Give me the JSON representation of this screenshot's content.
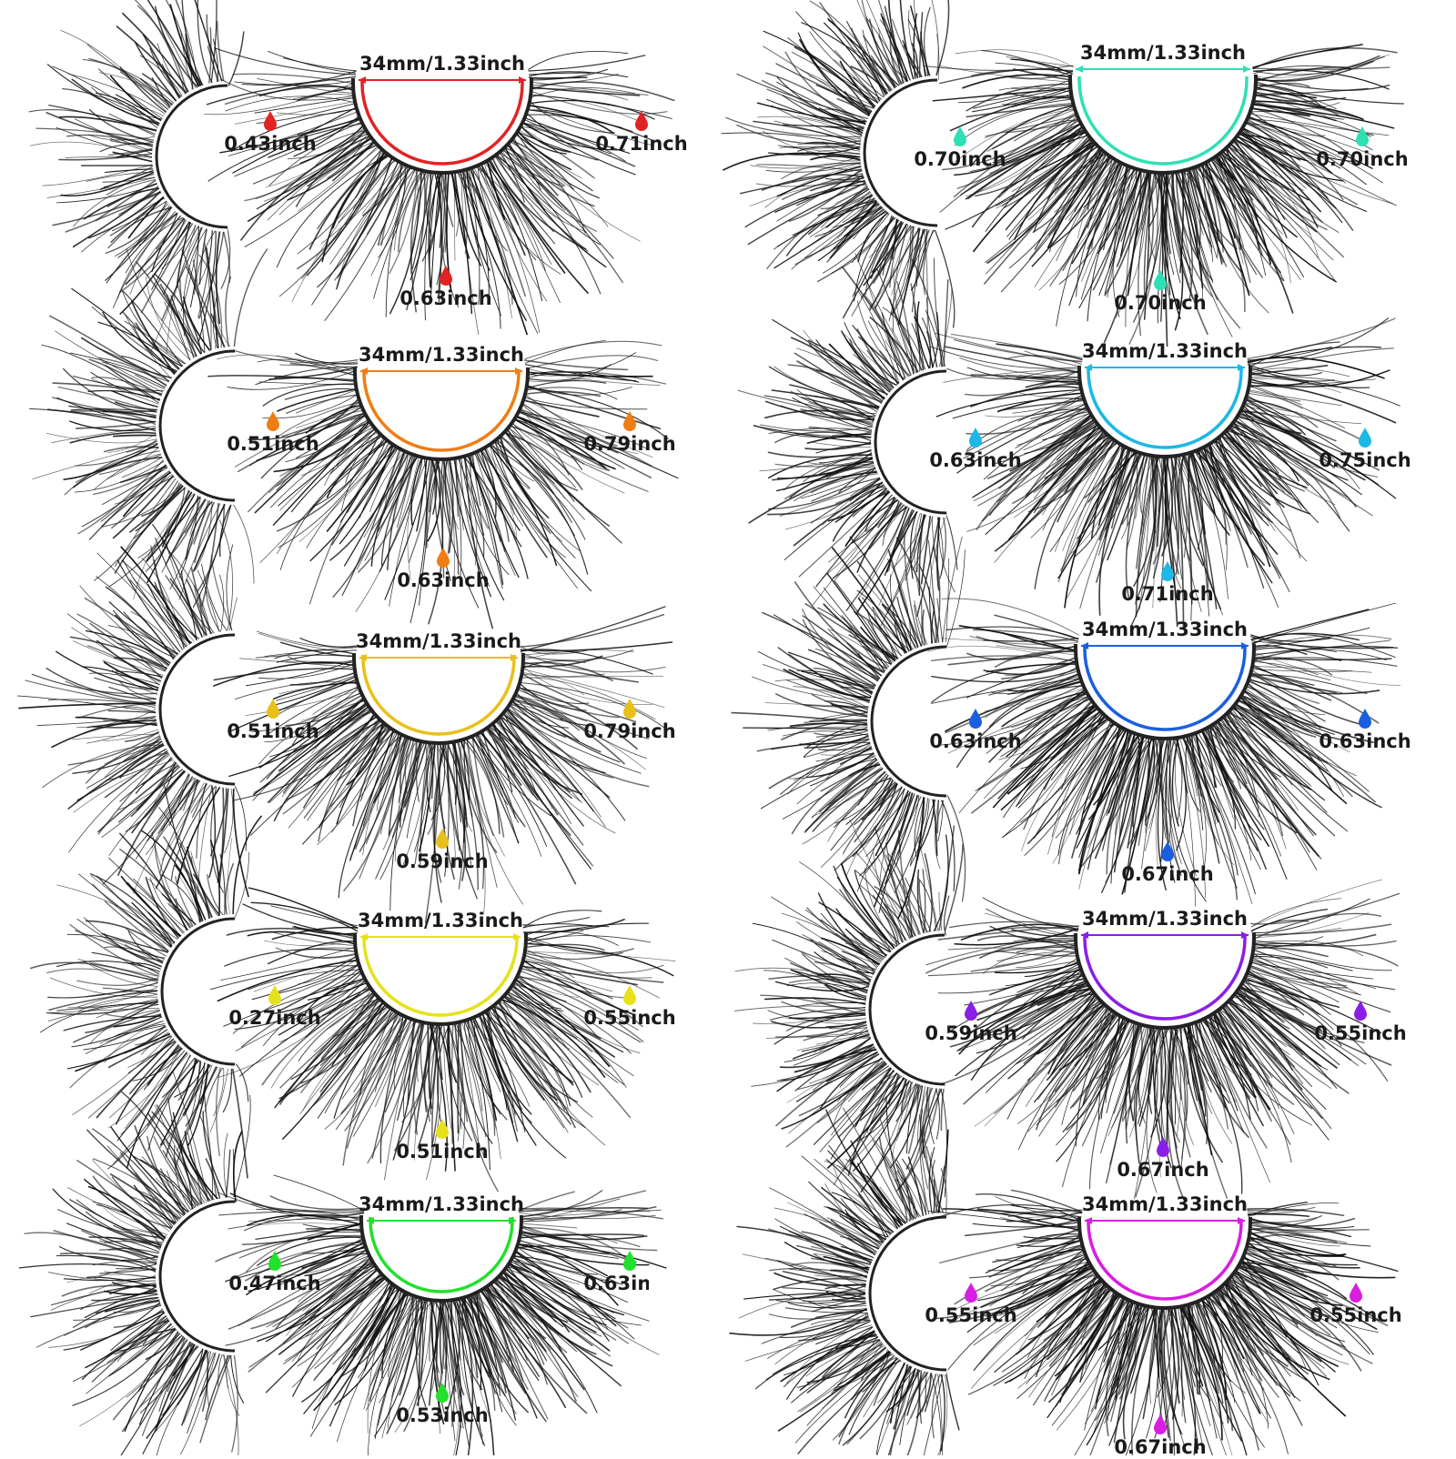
{
  "sets": [
    {
      "color": "#e02424",
      "width_label": "34mm/1.33inch",
      "side_label": "0.43inch",
      "right_label": "0.71inch",
      "bottom_label": "0.63inch"
    },
    {
      "color": "#f07d14",
      "width_label": "34mm/1.33inch",
      "side_label": "0.51inch",
      "right_label": "0.79inch",
      "bottom_label": "0.63inch"
    },
    {
      "color": "#e8c01b",
      "width_label": "34mm/1.33inch",
      "side_label": "0.51inch",
      "right_label": "0.79inch",
      "bottom_label": "0.59inch"
    },
    {
      "color": "#e6e21a",
      "width_label": "34mm/1.33inch",
      "side_label": "0.27inch",
      "right_label": "0.55inch",
      "bottom_label": "0.51inch"
    },
    {
      "color": "#22e02b",
      "width_label": "34mm/1.33inch",
      "side_label": "0.47inch",
      "right_label": "0.63inch",
      "bottom_label": "0.53inch"
    },
    {
      "color": "#2ee0b4",
      "width_label": "34mm/1.33inch",
      "side_label": "0.70inch",
      "right_label": "0.70inch",
      "bottom_label": "0.70inch"
    },
    {
      "color": "#1cb8e8",
      "width_label": "34mm/1.33inch",
      "side_label": "0.63inch",
      "right_label": "0.75inch",
      "bottom_label": "0.71inch"
    },
    {
      "color": "#1a5fe0",
      "width_label": "34mm/1.33inch",
      "side_label": "0.63inch",
      "right_label": "0.63inch",
      "bottom_label": "0.67inch"
    },
    {
      "color": "#8a1ee6",
      "width_label": "34mm/1.33inch",
      "side_label": "0.59inch",
      "right_label": "0.55inch",
      "bottom_label": "0.67inch"
    },
    {
      "color": "#d81ee0",
      "width_label": "34mm/1.33inch",
      "side_label": "0.55inch",
      "right_label": "0.55inch",
      "bottom_label": "0.67inch"
    }
  ]
}
